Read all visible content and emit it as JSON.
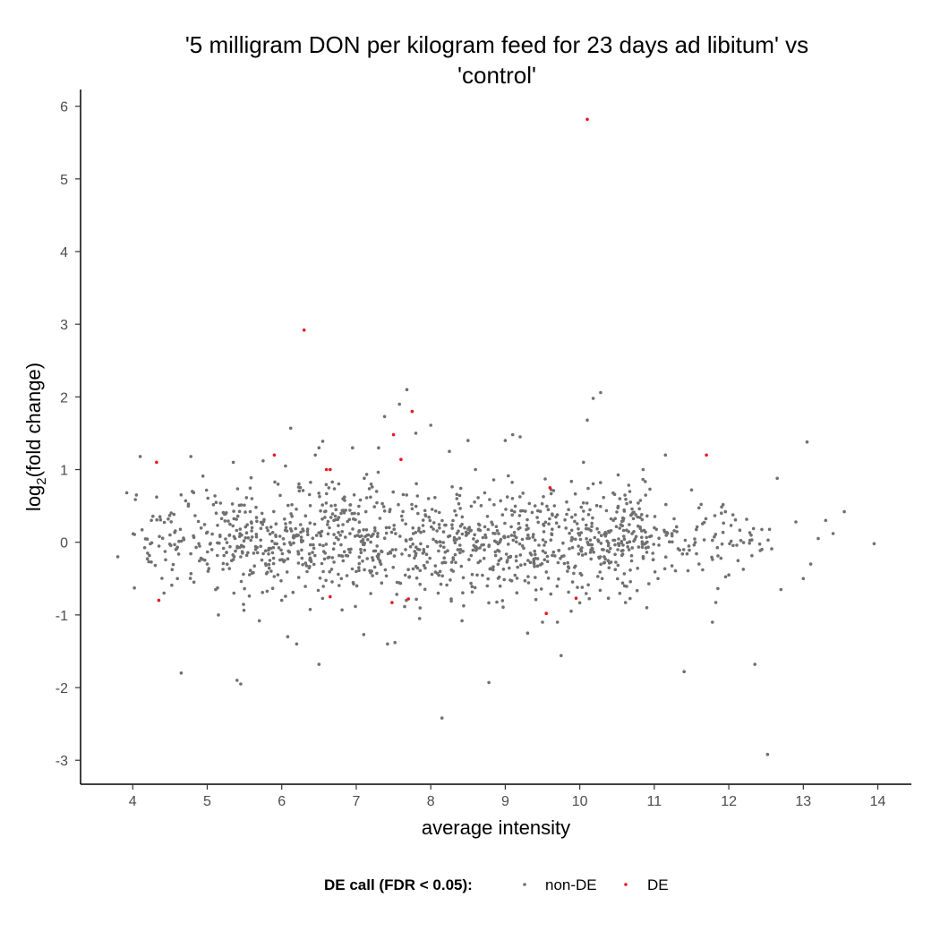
{
  "chart_data": {
    "type": "scatter",
    "title_lines": [
      "'5 milligram DON per kilogram feed for 23 days ad libitum' vs",
      "'control'"
    ],
    "xlabel": "average intensity",
    "ylabel": "log2(fold change)",
    "ylabel_parts": {
      "pre": "log",
      "sub": "2",
      "post": "(fold change)"
    },
    "xlim": [
      3.3,
      14.45
    ],
    "ylim": [
      -3.33,
      6.23
    ],
    "xticks": [
      4,
      5,
      6,
      7,
      8,
      9,
      10,
      11,
      12,
      13,
      14
    ],
    "yticks": [
      -3,
      -2,
      -1,
      0,
      1,
      2,
      3,
      4,
      5,
      6
    ],
    "grid": false,
    "legend": {
      "title": "DE call (FDR < 0.05):",
      "position": "bottom",
      "entries": [
        {
          "name": "non-DE",
          "color": "#707070"
        },
        {
          "name": "DE",
          "color": "#e8191f"
        }
      ]
    },
    "series": [
      {
        "name": "DE",
        "color": "#e8191f",
        "points": [
          [
            10.1,
            5.82
          ],
          [
            6.3,
            2.92
          ],
          [
            7.75,
            1.8
          ],
          [
            7.5,
            1.48
          ],
          [
            7.6,
            1.14
          ],
          [
            4.32,
            1.1
          ],
          [
            5.9,
            1.2
          ],
          [
            6.6,
            1.0
          ],
          [
            6.65,
            1.0
          ],
          [
            11.7,
            1.2
          ],
          [
            9.6,
            0.75
          ],
          [
            4.35,
            -0.8
          ],
          [
            6.65,
            -0.75
          ],
          [
            7.48,
            -0.83
          ],
          [
            7.7,
            -0.78
          ],
          [
            9.55,
            -0.98
          ],
          [
            9.95,
            -0.77
          ]
        ]
      },
      {
        "name": "non-DE",
        "color": "#707070",
        "points": [
          [
            3.8,
            -0.2
          ],
          [
            3.92,
            0.68
          ],
          [
            4.05,
            0.65
          ],
          [
            4.1,
            1.18
          ],
          [
            4.2,
            -0.15
          ],
          [
            4.25,
            0.3
          ],
          [
            4.42,
            -0.7
          ],
          [
            4.5,
            0.1
          ],
          [
            4.6,
            -0.5
          ],
          [
            4.65,
            -1.8
          ],
          [
            4.78,
            1.18
          ],
          [
            4.8,
            0.7
          ],
          [
            5.0,
            -0.3
          ],
          [
            5.12,
            0.4
          ],
          [
            5.15,
            -1.0
          ],
          [
            5.3,
            0.1
          ],
          [
            5.35,
            1.1
          ],
          [
            5.4,
            -1.9
          ],
          [
            5.45,
            -1.95
          ],
          [
            5.6,
            0.6
          ],
          [
            5.65,
            -0.1
          ],
          [
            5.7,
            -1.08
          ],
          [
            5.75,
            1.12
          ],
          [
            5.8,
            0.2
          ],
          [
            5.95,
            0.8
          ],
          [
            6.0,
            -0.8
          ],
          [
            6.05,
            1.05
          ],
          [
            6.08,
            -1.3
          ],
          [
            6.12,
            1.57
          ],
          [
            6.2,
            0.1
          ],
          [
            6.2,
            -1.4
          ],
          [
            6.45,
            1.2
          ],
          [
            6.5,
            -1.68
          ],
          [
            6.5,
            1.3
          ],
          [
            6.55,
            1.39
          ],
          [
            6.7,
            0.3
          ],
          [
            6.8,
            -0.5
          ],
          [
            6.95,
            1.3
          ],
          [
            7.1,
            -1.27
          ],
          [
            7.2,
            0.8
          ],
          [
            7.3,
            1.3
          ],
          [
            7.38,
            1.73
          ],
          [
            7.42,
            -1.4
          ],
          [
            7.52,
            -1.38
          ],
          [
            7.58,
            1.9
          ],
          [
            7.68,
            2.1
          ],
          [
            7.8,
            1.5
          ],
          [
            7.85,
            -1.05
          ],
          [
            8.0,
            1.61
          ],
          [
            8.1,
            -0.7
          ],
          [
            8.15,
            -2.42
          ],
          [
            8.25,
            1.25
          ],
          [
            8.35,
            0.6
          ],
          [
            8.42,
            -1.08
          ],
          [
            8.5,
            1.4
          ],
          [
            8.6,
            1.0
          ],
          [
            8.78,
            -1.93
          ],
          [
            9.0,
            1.4
          ],
          [
            9.1,
            1.48
          ],
          [
            9.2,
            1.45
          ],
          [
            9.3,
            -1.25
          ],
          [
            9.4,
            0.5
          ],
          [
            9.5,
            -1.1
          ],
          [
            9.7,
            -1.1
          ],
          [
            9.75,
            -1.56
          ],
          [
            9.85,
            0.45
          ],
          [
            10.05,
            1.1
          ],
          [
            10.1,
            1.68
          ],
          [
            10.18,
            1.98
          ],
          [
            10.28,
            2.06
          ],
          [
            10.3,
            -0.5
          ],
          [
            10.45,
            0.3
          ],
          [
            10.6,
            -0.6
          ],
          [
            10.75,
            0.38
          ],
          [
            10.85,
            1.0
          ],
          [
            10.9,
            -0.9
          ],
          [
            11.0,
            0.2
          ],
          [
            11.05,
            -0.5
          ],
          [
            11.15,
            1.2
          ],
          [
            11.4,
            -1.78
          ],
          [
            11.5,
            0.72
          ],
          [
            11.6,
            -0.3
          ],
          [
            11.78,
            -1.1
          ],
          [
            11.9,
            0.4
          ],
          [
            12.0,
            -0.45
          ],
          [
            12.35,
            -1.68
          ],
          [
            12.52,
            -2.92
          ],
          [
            12.65,
            0.88
          ],
          [
            12.7,
            -0.65
          ],
          [
            12.9,
            0.28
          ],
          [
            13.0,
            -0.5
          ],
          [
            13.05,
            1.38
          ],
          [
            13.1,
            -0.3
          ],
          [
            13.2,
            0.05
          ],
          [
            13.3,
            0.3
          ],
          [
            13.4,
            0.12
          ],
          [
            13.55,
            0.42
          ],
          [
            13.95,
            -0.02
          ]
        ]
      }
    ]
  }
}
